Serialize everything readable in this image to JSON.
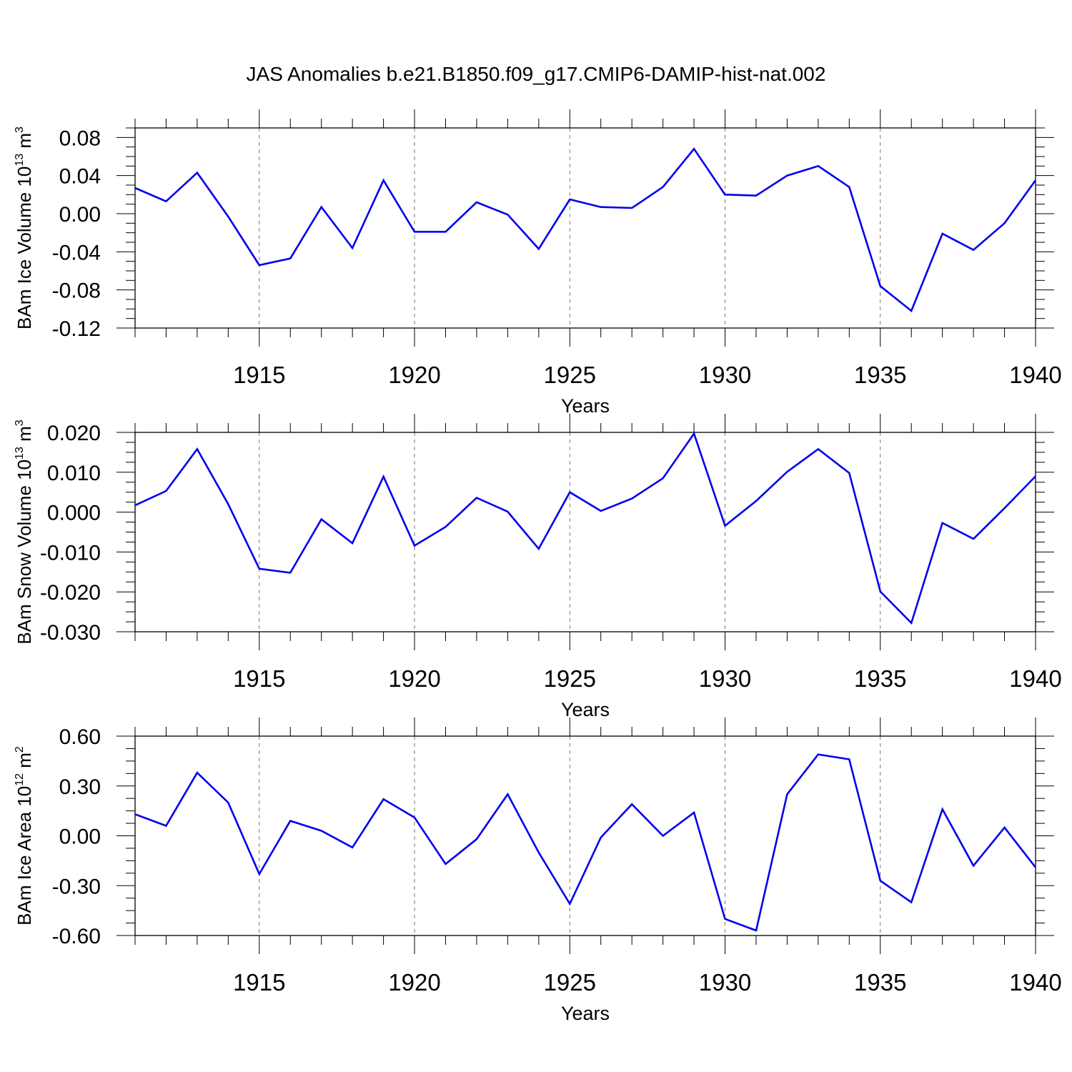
{
  "title": "JAS Anomalies b.e21.B1850.f09_g17.CMIP6-DAMIP-hist-nat.002",
  "colors": {
    "series": "#0000ee",
    "grid": "#777777",
    "axis": "#000000"
  },
  "chart_data": [
    {
      "type": "line",
      "ylabel": {
        "text": "BAm Ice Volume 10",
        "sup": "13",
        "unit": " m",
        "unit_sup": "3"
      },
      "xlabel": "Years",
      "xlim": [
        1911,
        1940
      ],
      "ylim": [
        -0.12,
        0.09
      ],
      "yticks": [
        -0.12,
        -0.08,
        -0.04,
        0.0,
        0.04,
        0.08
      ],
      "ytick_labels": [
        "-0.12",
        "-0.08",
        "-0.04",
        "0.00",
        "0.04",
        "0.08"
      ],
      "xticks": [
        1915,
        1920,
        1925,
        1930,
        1935,
        1940
      ],
      "xtick_labels": [
        "1915",
        "1920",
        "1925",
        "1930",
        "1935",
        "1940"
      ],
      "grid": "dashed vertical at major x ticks",
      "x": [
        1911,
        1912,
        1913,
        1914,
        1915,
        1916,
        1917,
        1918,
        1919,
        1920,
        1921,
        1922,
        1923,
        1924,
        1925,
        1926,
        1927,
        1928,
        1929,
        1930,
        1931,
        1932,
        1933,
        1934,
        1935,
        1936,
        1937,
        1938,
        1939,
        1940
      ],
      "values": [
        0.027,
        0.013,
        0.043,
        -0.003,
        -0.054,
        -0.047,
        0.007,
        -0.036,
        0.035,
        -0.019,
        -0.019,
        0.012,
        -0.001,
        -0.037,
        0.015,
        0.007,
        0.006,
        0.028,
        0.068,
        0.02,
        0.019,
        0.04,
        0.05,
        0.028,
        -0.076,
        -0.102,
        -0.021,
        -0.038,
        -0.01,
        0.035
      ]
    },
    {
      "type": "line",
      "ylabel": {
        "text": "BAm Snow Volume 10",
        "sup": "13",
        "unit": " m",
        "unit_sup": "3"
      },
      "xlabel": "Years",
      "xlim": [
        1911,
        1940
      ],
      "ylim": [
        -0.03,
        0.02
      ],
      "yticks": [
        -0.03,
        -0.02,
        -0.01,
        0.0,
        0.01,
        0.02
      ],
      "ytick_labels": [
        "-0.030",
        "-0.020",
        "-0.010",
        "0.000",
        "0.010",
        "0.020"
      ],
      "xticks": [
        1915,
        1920,
        1925,
        1930,
        1935,
        1940
      ],
      "xtick_labels": [
        "1915",
        "1920",
        "1925",
        "1930",
        "1935",
        "1940"
      ],
      "grid": "dashed vertical at major x ticks",
      "x": [
        1911,
        1912,
        1913,
        1914,
        1915,
        1916,
        1917,
        1918,
        1919,
        1920,
        1921,
        1922,
        1923,
        1924,
        1925,
        1926,
        1927,
        1928,
        1929,
        1930,
        1931,
        1932,
        1933,
        1934,
        1935,
        1936,
        1937,
        1938,
        1939,
        1940
      ],
      "values": [
        0.0017,
        0.0053,
        0.0158,
        0.002,
        -0.0142,
        -0.0152,
        -0.0018,
        -0.0078,
        0.0089,
        -0.0084,
        -0.0037,
        0.0036,
        0.0001,
        -0.0092,
        0.005,
        0.0003,
        0.0034,
        0.0085,
        0.0197,
        -0.0034,
        0.0028,
        0.0101,
        0.0158,
        0.0098,
        -0.0199,
        -0.0278,
        -0.0027,
        -0.0067,
        0.001,
        0.009
      ]
    },
    {
      "type": "line",
      "ylabel": {
        "text": "BAm Ice Area 10",
        "sup": "12",
        "unit": " m",
        "unit_sup": "2"
      },
      "xlabel": "Years",
      "xlim": [
        1911,
        1940
      ],
      "ylim": [
        -0.6,
        0.6
      ],
      "yticks": [
        -0.6,
        -0.3,
        0.0,
        0.3,
        0.6
      ],
      "ytick_labels": [
        "-0.60",
        "-0.30",
        "0.00",
        "0.30",
        "0.60"
      ],
      "xticks": [
        1915,
        1920,
        1925,
        1930,
        1935,
        1940
      ],
      "xtick_labels": [
        "1915",
        "1920",
        "1925",
        "1930",
        "1935",
        "1940"
      ],
      "grid": "dashed vertical at major x ticks",
      "x": [
        1911,
        1912,
        1913,
        1914,
        1915,
        1916,
        1917,
        1918,
        1919,
        1920,
        1921,
        1922,
        1923,
        1924,
        1925,
        1926,
        1927,
        1928,
        1929,
        1930,
        1931,
        1932,
        1933,
        1934,
        1935,
        1936,
        1937,
        1938,
        1939,
        1940
      ],
      "values": [
        0.13,
        0.06,
        0.38,
        0.2,
        -0.23,
        0.09,
        0.03,
        -0.07,
        0.22,
        0.11,
        -0.17,
        -0.02,
        0.25,
        -0.1,
        -0.41,
        -0.01,
        0.19,
        0.0,
        0.14,
        -0.5,
        -0.57,
        0.25,
        0.49,
        0.46,
        -0.27,
        -0.4,
        0.16,
        -0.18,
        0.05,
        -0.19
      ]
    }
  ]
}
